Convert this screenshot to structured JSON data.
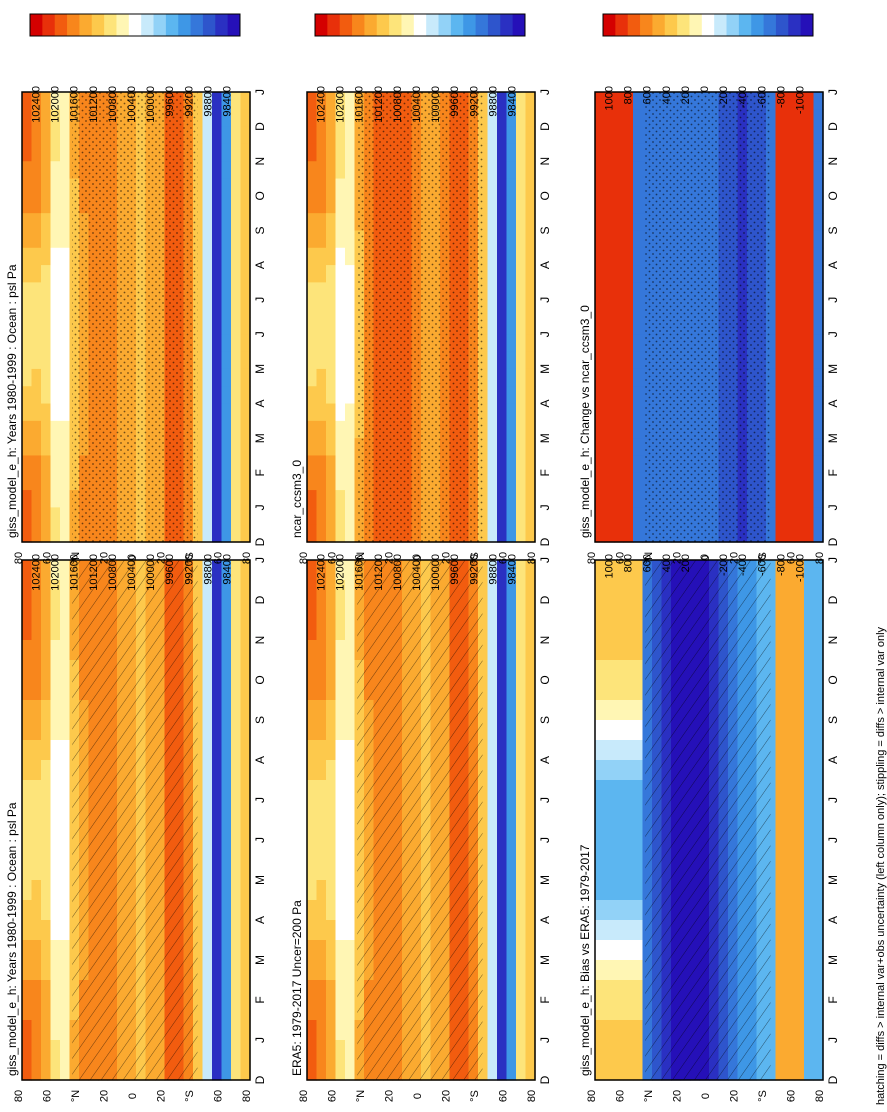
{
  "footnote": "hatching = diffs > internal var+obs uncertainty (left column only); stippling = diffs > internal var only",
  "chart_data": [
    {
      "type": "heatmap",
      "title": "giss_model_e_h: Years 1980-1999 : Ocean : psl Pa",
      "x_ticks": [
        "D",
        "J",
        "F",
        "M",
        "A",
        "M",
        "J",
        "J",
        "A",
        "S",
        "O",
        "N",
        "D",
        "J"
      ],
      "y_ticks": [
        "80",
        "60",
        "°N",
        "20",
        "0",
        "20",
        "°S",
        "60",
        "80"
      ],
      "colorbar": [
        "102400",
        "102000",
        "101600",
        "101200",
        "100800",
        "100400",
        "100000",
        "99600",
        "99200",
        "98800",
        "98400"
      ],
      "pattern": "mean",
      "lat_range": [
        -90,
        90
      ],
      "vmin": 98400,
      "vmax": 102400
    },
    {
      "type": "heatmap",
      "title": "ERA5: 1979-2017 Uncer=200 Pa",
      "x_ticks": [
        "D",
        "J",
        "F",
        "M",
        "A",
        "M",
        "J",
        "J",
        "A",
        "S",
        "O",
        "N",
        "D",
        "J"
      ],
      "y_ticks": [
        "80",
        "60",
        "°N",
        "20",
        "0",
        "20",
        "°S",
        "60",
        "80"
      ],
      "colorbar": [
        "102400",
        "102000",
        "101600",
        "101200",
        "100800",
        "100400",
        "100000",
        "99600",
        "99200",
        "98800",
        "98400"
      ],
      "pattern": "mean",
      "lat_range": [
        -90,
        90
      ],
      "vmin": 98400,
      "vmax": 102400
    },
    {
      "type": "heatmap",
      "title": "giss_model_e_h: Bias vs ERA5: 1979-2017",
      "x_ticks": [
        "D",
        "J",
        "F",
        "M",
        "A",
        "M",
        "J",
        "J",
        "A",
        "S",
        "O",
        "N",
        "D",
        "J"
      ],
      "y_ticks": [
        "80",
        "60",
        "°N",
        "20",
        "0",
        "20",
        "°S",
        "60",
        "80"
      ],
      "colorbar": [
        "1000",
        "800",
        "600",
        "400",
        "200",
        "0",
        "-200",
        "-400",
        "-600",
        "-800",
        "-1000"
      ],
      "pattern": "bias",
      "lat_range": [
        -90,
        90
      ],
      "vmin": -1000,
      "vmax": 1000
    },
    {
      "type": "heatmap",
      "title": "giss_model_e_h: Years 1980-1999 : Ocean : psl Pa",
      "x_ticks": [
        "D",
        "J",
        "F",
        "M",
        "A",
        "M",
        "J",
        "J",
        "A",
        "S",
        "O",
        "N",
        "D",
        "J"
      ],
      "y_ticks": [
        "80",
        "60",
        "°N",
        "20",
        "0",
        "20",
        "°S",
        "60",
        "80"
      ],
      "colorbar": [
        "102400",
        "102000",
        "101600",
        "101200",
        "100800",
        "100400",
        "100000",
        "99600",
        "99200",
        "98800",
        "98400"
      ],
      "pattern": "mean",
      "lat_range": [
        -90,
        90
      ],
      "vmin": 98400,
      "vmax": 102400
    },
    {
      "type": "heatmap",
      "title": "ncar_ccsm3_0",
      "x_ticks": [
        "D",
        "J",
        "F",
        "M",
        "A",
        "M",
        "J",
        "J",
        "A",
        "S",
        "O",
        "N",
        "D",
        "J"
      ],
      "y_ticks": [
        "80",
        "60",
        "°N",
        "20",
        "0",
        "20",
        "°S",
        "60",
        "80"
      ],
      "colorbar": [
        "102400",
        "102000",
        "101600",
        "101200",
        "100800",
        "100400",
        "100000",
        "99600",
        "99200",
        "98800",
        "98400"
      ],
      "pattern": "mean2",
      "lat_range": [
        -90,
        90
      ],
      "vmin": 98400,
      "vmax": 102400
    },
    {
      "type": "heatmap",
      "title": "giss_model_e_h: Change vs ncar_ccsm3_0",
      "x_ticks": [
        "D",
        "J",
        "F",
        "M",
        "A",
        "M",
        "J",
        "J",
        "A",
        "S",
        "O",
        "N",
        "D",
        "J"
      ],
      "y_ticks": [
        "80",
        "60",
        "°N",
        "20",
        "0",
        "20",
        "°S",
        "60",
        "80"
      ],
      "colorbar": [
        "1000",
        "800",
        "600",
        "400",
        "200",
        "0",
        "-200",
        "-400",
        "-600",
        "-800",
        "-1000"
      ],
      "pattern": "change",
      "lat_range": [
        -90,
        90
      ],
      "vmin": -1000,
      "vmax": 1000
    }
  ],
  "palette": [
    "#d40000",
    "#e8300a",
    "#f25c0f",
    "#f8861c",
    "#fbaa30",
    "#fdc94c",
    "#fde47a",
    "#fff6b4",
    "#ffffff",
    "#c8eafb",
    "#92d2f7",
    "#5cb6f0",
    "#3e97e6",
    "#3577da",
    "#2e55cc",
    "#2a30c2",
    "#2510b8"
  ]
}
